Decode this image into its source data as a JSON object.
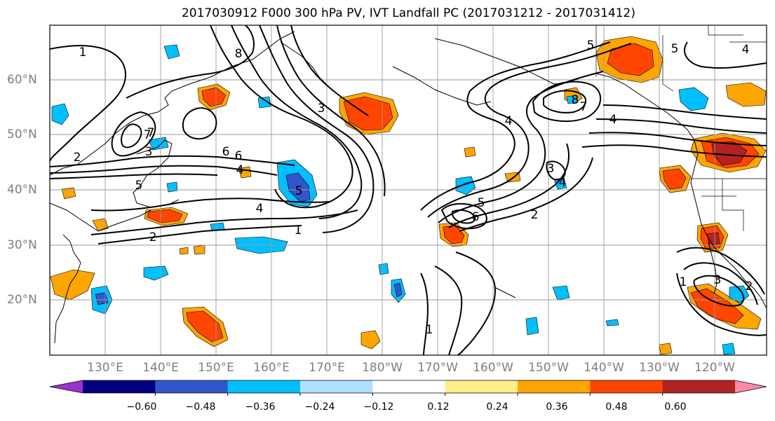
{
  "title": "2017030912 F000 300 hPa PV, IVT Landfall PC (2017031212 - 2017031412)",
  "lat_labels": [
    "60°N",
    "50°N",
    "40°N",
    "30°N",
    "20°N"
  ],
  "lon_labels": [
    "130°E",
    "140°E",
    "150°E",
    "160°E",
    "170°E",
    "180°W",
    "170°W",
    "160°W",
    "150°W",
    "140°W",
    "130°W",
    "120°W"
  ],
  "colorbar": {
    "colors": [
      "#9933cc",
      "#000080",
      "#3355cc",
      "#00bfff",
      "#b0e0ff",
      "#ffffff",
      "#ffee88",
      "#ffa500",
      "#ff4500",
      "#b22222",
      "#ff88aa"
    ],
    "tick_labels": [
      "−0.60",
      "−0.48",
      "−0.36",
      "−0.24",
      "−0.12",
      "0.12",
      "0.24",
      "0.36",
      "0.48",
      "0.60"
    ]
  },
  "contour_labels": [
    "1",
    "2",
    "3",
    "4",
    "5",
    "6",
    "7",
    "8",
    "1",
    "2",
    "3",
    "4",
    "5",
    "6",
    "7",
    "4",
    "5",
    "4",
    "1",
    "1",
    "2",
    "3",
    "4",
    "5",
    "6",
    "7",
    "8",
    "2",
    "3",
    "4",
    "5"
  ]
}
